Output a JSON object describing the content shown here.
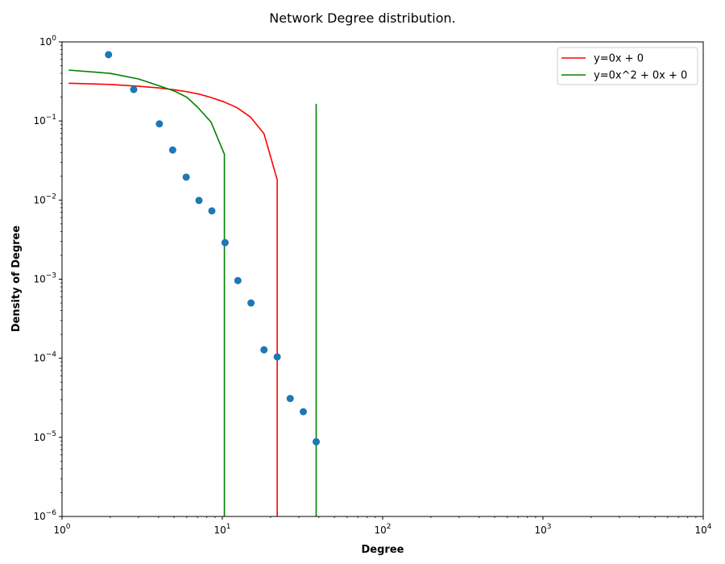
{
  "chart_data": {
    "type": "scatter",
    "title": "Network Degree distribution.",
    "xlabel": "Degree",
    "ylabel": "Density of Degree",
    "xscale": "log",
    "yscale": "log",
    "xlim": [
      1,
      10000
    ],
    "ylim": [
      1e-06,
      1
    ],
    "grid": false,
    "legend_position": "top-right",
    "x_ticks": [
      {
        "value": 1,
        "base": "10",
        "exp": "0"
      },
      {
        "value": 10,
        "base": "10",
        "exp": "1"
      },
      {
        "value": 100,
        "base": "10",
        "exp": "2"
      },
      {
        "value": 1000,
        "base": "10",
        "exp": "3"
      },
      {
        "value": 10000,
        "base": "10",
        "exp": "4"
      }
    ],
    "y_ticks": [
      {
        "value": 1,
        "base": "10",
        "exp": "0"
      },
      {
        "value": 0.1,
        "base": "10",
        "exp": "−1"
      },
      {
        "value": 0.01,
        "base": "10",
        "exp": "−2"
      },
      {
        "value": 0.001,
        "base": "10",
        "exp": "−3"
      },
      {
        "value": 0.0001,
        "base": "10",
        "exp": "−4"
      },
      {
        "value": 1e-05,
        "base": "10",
        "exp": "−5"
      },
      {
        "value": 1e-06,
        "base": "10",
        "exp": "−6"
      }
    ],
    "points": {
      "color": "#1f77b4",
      "x": [
        1.95,
        2.8,
        4.05,
        4.9,
        5.95,
        7.15,
        8.6,
        10.4,
        12.5,
        15.1,
        18.2,
        22.0,
        26.5,
        32.0,
        38.5
      ],
      "y": [
        0.69,
        0.25,
        0.092,
        0.043,
        0.0195,
        0.0099,
        0.0073,
        0.0029,
        0.00096,
        0.0005,
        0.000128,
        0.000104,
        3.1e-05,
        2.11e-05,
        8.8e-06
      ]
    },
    "series": [
      {
        "name": "y=0x + 0",
        "color": "#ff0000",
        "x": [
          1.1,
          2.0,
          3.0,
          4.0,
          5.0,
          6.0,
          7.2,
          8.5,
          10.2,
          12.3,
          15.0,
          18.2,
          22.0,
          22.0
        ],
        "y": [
          0.3,
          0.29,
          0.275,
          0.262,
          0.248,
          0.235,
          0.218,
          0.198,
          0.175,
          0.148,
          0.112,
          0.069,
          0.018,
          1e-06
        ]
      },
      {
        "name": "y=0x^2 + 0x + 0",
        "color": "#008000",
        "x": [
          1.1,
          2.0,
          3.0,
          4.0,
          5.0,
          6.0,
          7.0,
          8.5,
          10.3,
          10.3,
          null,
          38.5,
          38.5
        ],
        "y": [
          0.44,
          0.4,
          0.34,
          0.28,
          0.24,
          0.2,
          0.15,
          0.097,
          0.038,
          1e-06,
          null,
          1e-06,
          0.165
        ]
      }
    ]
  }
}
